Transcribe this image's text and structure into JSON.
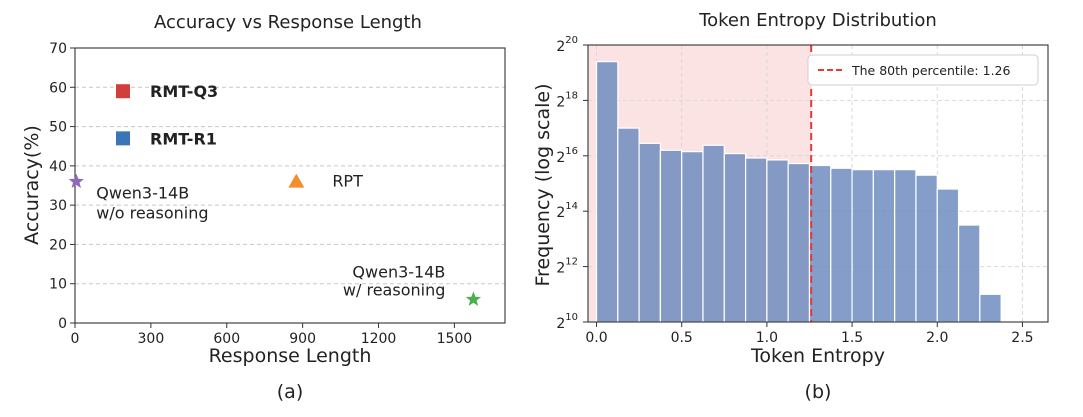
{
  "chart_data": [
    {
      "type": "scatter",
      "title": "Accuracy vs Response Length",
      "xlabel": "Response Length",
      "ylabel": "Accuracy(%)",
      "caption": "(a)",
      "xlim": [
        0,
        1700
      ],
      "ylim": [
        0,
        70
      ],
      "xticks": [
        0,
        300,
        600,
        900,
        1200,
        1500
      ],
      "yticks": [
        0,
        10,
        20,
        30,
        40,
        50,
        60,
        70
      ],
      "grid": "y-dashed",
      "points": [
        {
          "label": "Qwen3-14B w/o reasoning",
          "label_lines": [
            "Qwen3-14B",
            "w/o reasoning"
          ],
          "x": 5,
          "y": 36,
          "marker": "star",
          "color": "#8e6bb8"
        },
        {
          "label": "RPT",
          "label_lines": [
            "RPT"
          ],
          "x": 875,
          "y": 36,
          "marker": "triangle",
          "color": "#f28e2b"
        },
        {
          "label": "Qwen3-14B w/ reasoning",
          "label_lines": [
            "Qwen3-14B",
            "w/ reasoning"
          ],
          "x": 1575,
          "y": 6,
          "marker": "star",
          "color": "#4caf50"
        }
      ],
      "legend": [
        {
          "label": "RMT-Q3",
          "marker": "square",
          "color": "#d23f3a"
        },
        {
          "label": "RMT-R1",
          "marker": "square",
          "color": "#3a75b5"
        }
      ]
    },
    {
      "type": "bar",
      "title": "Token Entropy Distribution",
      "xlabel": "Token Entropy",
      "ylabel": "Frequency (log scale)",
      "caption": "(b)",
      "yscale": "log2",
      "xlim": [
        -0.05,
        2.65
      ],
      "ylim_log2": [
        10,
        20
      ],
      "xticks": [
        0.0,
        0.5,
        1.0,
        1.5,
        2.0,
        2.5
      ],
      "ytick_exponents": [
        10,
        12,
        14,
        16,
        18,
        20
      ],
      "grid": "dashed",
      "bin_width": 0.125,
      "bin_starts": [
        0.0,
        0.125,
        0.25,
        0.375,
        0.5,
        0.625,
        0.75,
        0.875,
        1.0,
        1.125,
        1.25,
        1.375,
        1.5,
        1.625,
        1.75,
        1.875,
        2.0,
        2.125,
        2.25
      ],
      "log2_frequency": [
        19.4,
        17.0,
        16.45,
        16.2,
        16.15,
        16.38,
        16.08,
        15.92,
        15.85,
        15.72,
        15.65,
        15.55,
        15.5,
        15.5,
        15.5,
        15.3,
        14.8,
        13.5,
        11.0
      ],
      "bar_color": "#6f8dbf",
      "threshold": {
        "label": "The 80th percentile: 1.26",
        "x": 1.26,
        "color": "#e53935",
        "shade_color": "#f9d7d7"
      }
    }
  ]
}
